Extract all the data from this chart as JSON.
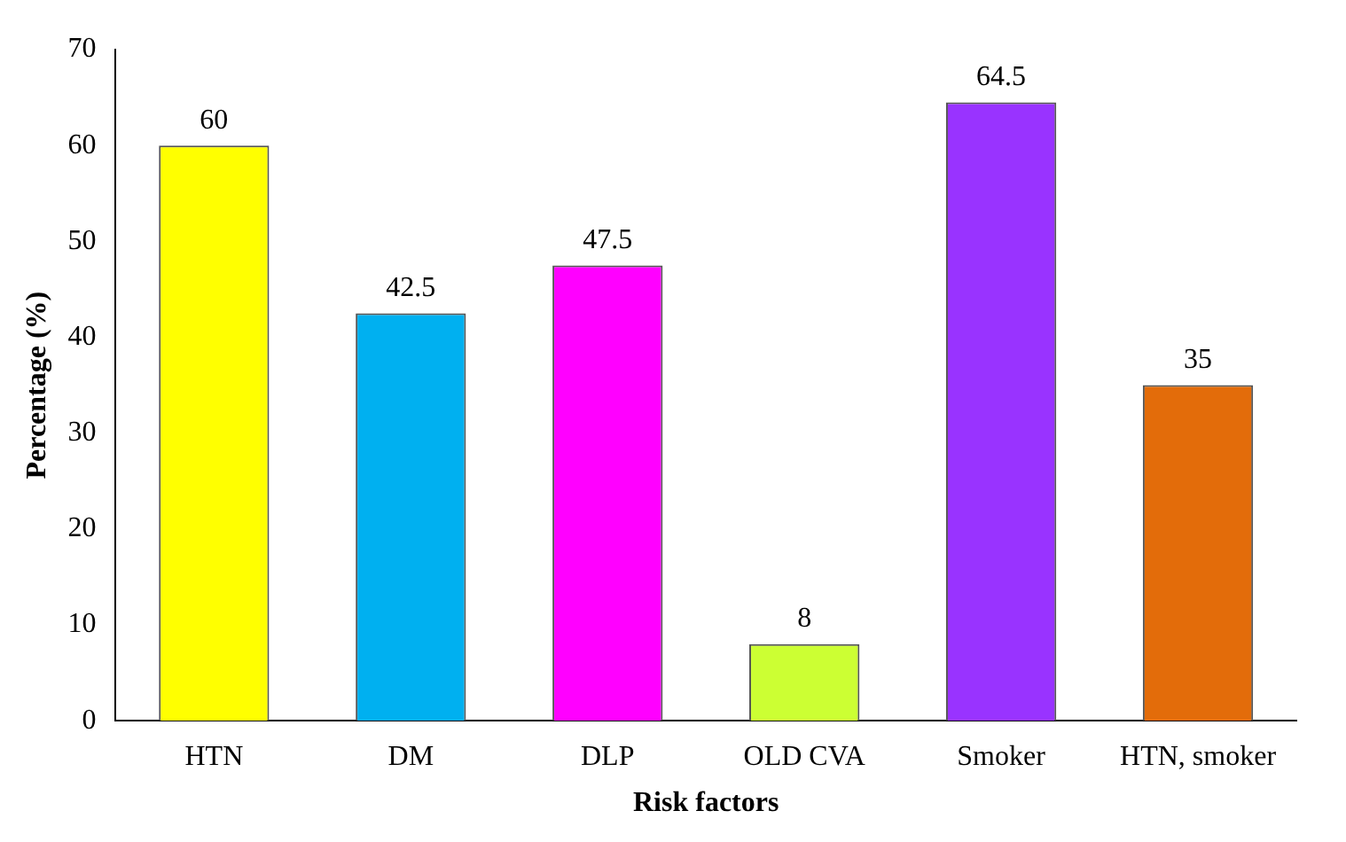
{
  "chart_data": {
    "type": "bar",
    "xlabel": "Risk factors",
    "ylabel": "Percentage (%)",
    "categories": [
      "HTN",
      "DM",
      "DLP",
      "OLD CVA",
      "Smoker",
      "HTN, smoker"
    ],
    "values": [
      60,
      42.5,
      47.5,
      8,
      64.5,
      35
    ],
    "colors": [
      "#ffff00",
      "#00b0f0",
      "#ff00ff",
      "#ccff33",
      "#9933ff",
      "#e36c0a"
    ],
    "ylim": [
      0,
      70
    ],
    "yticks": [
      0,
      10,
      20,
      30,
      40,
      50,
      60,
      70
    ],
    "grid": false,
    "data_labels": true,
    "legend": false
  }
}
